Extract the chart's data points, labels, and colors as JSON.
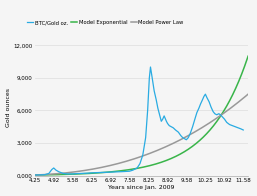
{
  "title": "",
  "xlabel": "Years since Jan. 2009",
  "ylabel": "Gold ounces",
  "legend": [
    "BTC/Gold oz.",
    "Model Exponential",
    "Model Power Law"
  ],
  "legend_colors": [
    "#29ABE2",
    "#39B54A",
    "#999999"
  ],
  "xlim": [
    4.25,
    11.75
  ],
  "ylim": [
    0,
    12500
  ],
  "yticks": [
    0,
    3000,
    6000,
    9000,
    12000
  ],
  "ytick_labels": [
    "0,000",
    "3,000",
    "6,000",
    "9,000",
    "12,000"
  ],
  "xticks": [
    4.25,
    4.92,
    5.58,
    6.25,
    6.92,
    7.58,
    8.25,
    8.92,
    9.58,
    10.25,
    10.92,
    11.58
  ],
  "xtick_labels": [
    "4.25",
    "4.92",
    "5.58",
    "6.25",
    "6.92",
    "7.58",
    "8.25",
    "8.92",
    "9.58",
    "10.25",
    "10.92",
    "11.58"
  ],
  "background_color": "#f5f5f5",
  "grid_color": "#dddddd"
}
